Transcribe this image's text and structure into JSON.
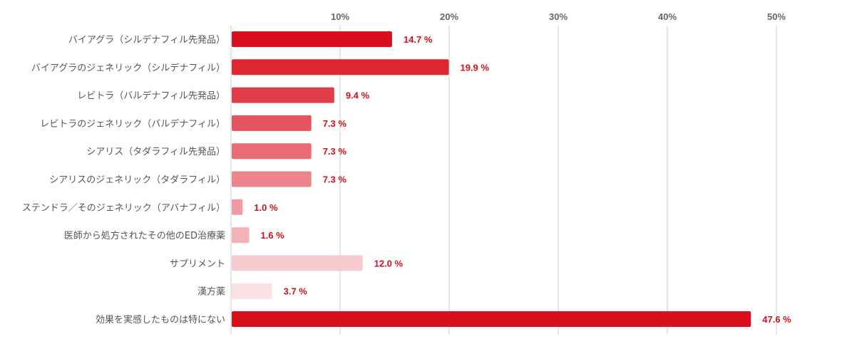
{
  "chart_data": {
    "type": "bar",
    "orientation": "horizontal",
    "title": "",
    "xlabel": "",
    "ylabel": "",
    "xlim": [
      0,
      50
    ],
    "ticks": [
      10,
      20,
      30,
      40,
      50
    ],
    "tick_labels": [
      "10%",
      "20%",
      "30%",
      "40%",
      "50%"
    ],
    "grid": true,
    "categories": [
      "バイアグラ（シルデナフィル先発品）",
      "バイアグラのジェネリック（シルデナフィル）",
      "レビトラ（バルデナフィル先発品）",
      "レビトラのジェネリック（バルデナフィル）",
      "シアリス（タダラフィル先発品）",
      "シアリスのジェネリック（タダラフィル）",
      "ステンドラ／そのジェネリック（アバナフィル）",
      "医師から処方されたその他のED治療薬",
      "サプリメント",
      "漢方薬",
      "効果を実感したものは特にない"
    ],
    "values": [
      14.7,
      19.9,
      9.4,
      7.3,
      7.3,
      7.3,
      1.0,
      1.6,
      12.0,
      3.7,
      47.6
    ],
    "value_labels": [
      "14.7 %",
      "19.9 %",
      "9.4 %",
      "7.3 %",
      "7.3 %",
      "7.3 %",
      "1.0 %",
      "1.6 %",
      "12.0 %",
      "3.7 %",
      "47.6 %"
    ],
    "bar_colors": [
      "#d90f1d",
      "#de2632",
      "#e23e49",
      "#e5555f",
      "#e96c74",
      "#ec848b",
      "#f09ba1",
      "#f3b2b6",
      "#f7cacd",
      "#fae1e3",
      "#d90f1d"
    ],
    "value_label_color": "#d0101c"
  }
}
